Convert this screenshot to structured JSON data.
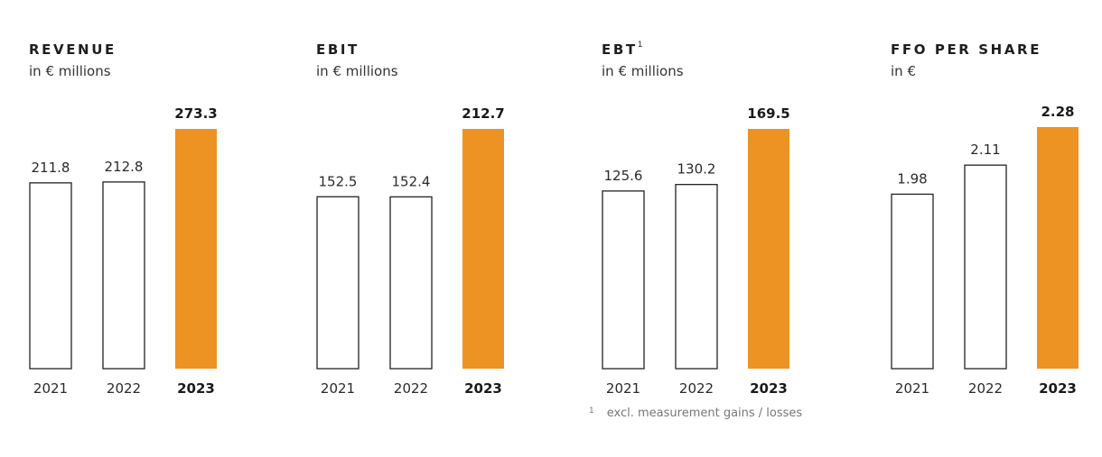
{
  "highlight_color": "#EC9324",
  "outline_color": "#222222",
  "chart_data": [
    {
      "type": "bar",
      "title": "REVENUE",
      "title_marker": "",
      "subtitle": "in € millions",
      "categories": [
        "2021",
        "2022",
        "2023"
      ],
      "values": [
        211.8,
        212.8,
        273.3
      ],
      "value_labels": [
        "211.8",
        "212.8",
        "273.3"
      ],
      "highlight_category": "2023"
    },
    {
      "type": "bar",
      "title": "EBIT",
      "title_marker": "",
      "subtitle": "in € millions",
      "categories": [
        "2021",
        "2022",
        "2023"
      ],
      "values": [
        152.5,
        152.4,
        212.7
      ],
      "value_labels": [
        "152.5",
        "152.4",
        "212.7"
      ],
      "highlight_category": "2023"
    },
    {
      "type": "bar",
      "title": "EBT",
      "title_marker": "1",
      "subtitle": "in € millions",
      "categories": [
        "2021",
        "2022",
        "2023"
      ],
      "values": [
        125.6,
        130.2,
        169.5
      ],
      "value_labels": [
        "125.6",
        "130.2",
        "169.5"
      ],
      "highlight_category": "2023"
    },
    {
      "type": "bar",
      "title": "FFO PER SHARE",
      "title_marker": "",
      "subtitle": "in €",
      "categories": [
        "2021",
        "2022",
        "2023"
      ],
      "values": [
        1.98,
        2.11,
        2.28
      ],
      "value_labels": [
        "1.98",
        "2.11",
        "2.28"
      ],
      "highlight_category": "2023"
    }
  ],
  "footnote": {
    "marker": "1",
    "text": "excl. measurement gains / losses"
  }
}
